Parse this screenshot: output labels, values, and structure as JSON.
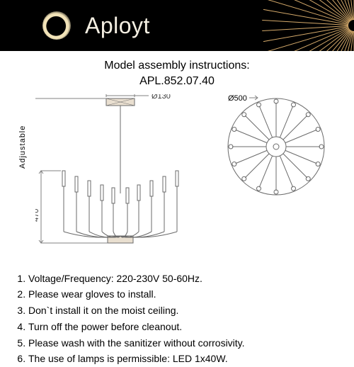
{
  "brand": "Aployt",
  "header": {
    "background": "#000000",
    "text_color": "#f4efe2",
    "ray_color": "#d4a96a"
  },
  "title_line1": "Model assembly instructions:",
  "title_line2": "APL.852.07.40",
  "dimensions": {
    "ceiling_plate_diameter_label": "Ø130",
    "body_height_label": "470",
    "overall_diameter_label": "Ø500",
    "adjustable_label": "Adjustable"
  },
  "diagram_style": {
    "stroke": "#6b6b6b",
    "stroke_width": 1,
    "dim_stroke": "#808080",
    "text_color": "#3a3a3a",
    "ceiling_fill": "#e9dfd0"
  },
  "top_view": {
    "arm_count": 16,
    "outer_radius": 68,
    "bulb_radius": 3,
    "hub_radius": 14,
    "hub_inner_radius": 4
  },
  "instructions": [
    "Voltage/Frequency: 220-230V 50-60Hz.",
    "Please wear gloves to install.",
    "Don`t install it on the moist ceiling.",
    "Turn off the power before cleanout.",
    "Please wash with the sanitizer without corrosivity.",
    "The use of lamps is permissible: LED 1x40W."
  ]
}
